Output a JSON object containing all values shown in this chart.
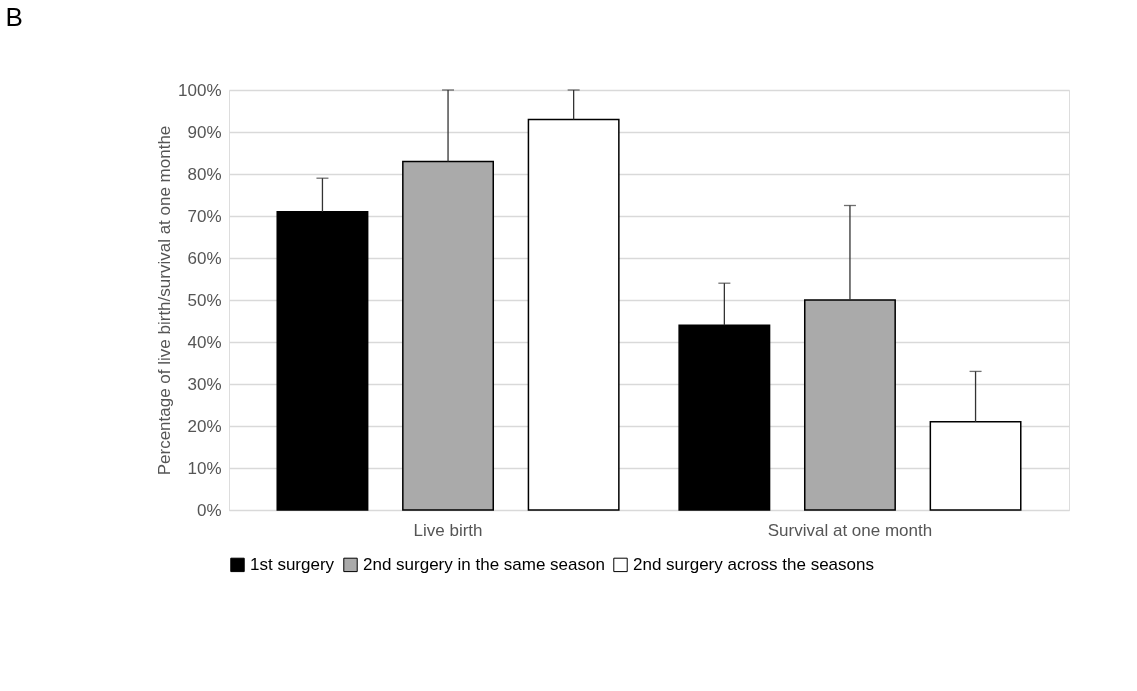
{
  "chart_data": {
    "type": "bar",
    "title": "B",
    "ylabel": "Percentage of live birth/survival at one monthe",
    "categories": [
      "Live birth",
      "Survival at one month"
    ],
    "series": [
      {
        "name": "1st surgery",
        "color": "#000000",
        "values": [
          71,
          44
        ],
        "errors": [
          [
            71,
            79
          ],
          [
            44,
            54
          ]
        ]
      },
      {
        "name": "2nd surgery in the same season",
        "color": "#aaaaaa",
        "values": [
          83,
          50
        ],
        "errors": [
          [
            83,
            100
          ],
          [
            50,
            72.5
          ]
        ]
      },
      {
        "name": "2nd surgery across the seasons",
        "color": "#ffffff",
        "values": [
          93,
          21
        ],
        "errors": [
          [
            93,
            100
          ],
          [
            21,
            33
          ]
        ]
      }
    ],
    "ylim": [
      0,
      100
    ],
    "yticks": [
      {
        "value": 0,
        "label": "0%"
      },
      {
        "value": 10,
        "label": "10%"
      },
      {
        "value": 20,
        "label": "20%"
      },
      {
        "value": 30,
        "label": "30%"
      },
      {
        "value": 40,
        "label": "40%"
      },
      {
        "value": 50,
        "label": "50%"
      },
      {
        "value": 60,
        "label": "60%"
      },
      {
        "value": 70,
        "label": "70%"
      },
      {
        "value": 80,
        "label": "80%"
      },
      {
        "value": 90,
        "label": "90%"
      },
      {
        "value": 100,
        "label": "100%"
      }
    ],
    "grid": "y",
    "legend": "bottom"
  }
}
